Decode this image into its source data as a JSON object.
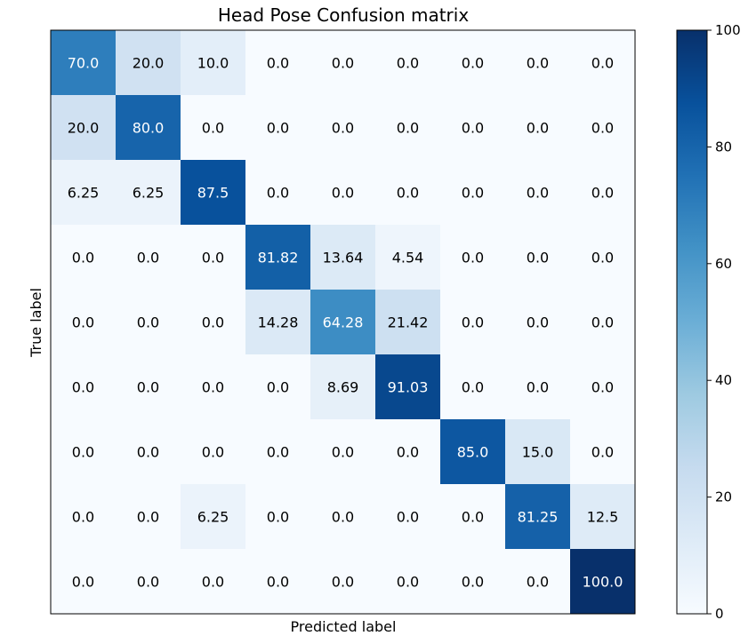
{
  "chart_data": {
    "type": "heatmap",
    "title": "Head Pose Confusion matrix",
    "xlabel": "Predicted label",
    "ylabel": "True label",
    "colormap": "Blues",
    "vmin": 0,
    "vmax": 100,
    "text_threshold": 50,
    "colorbar_ticks": [
      "0",
      "20",
      "40",
      "60",
      "80",
      "100"
    ],
    "matrix": [
      [
        "70.0",
        "20.0",
        "10.0",
        "0.0",
        "0.0",
        "0.0",
        "0.0",
        "0.0",
        "0.0"
      ],
      [
        "20.0",
        "80.0",
        "0.0",
        "0.0",
        "0.0",
        "0.0",
        "0.0",
        "0.0",
        "0.0"
      ],
      [
        "6.25",
        "6.25",
        "87.5",
        "0.0",
        "0.0",
        "0.0",
        "0.0",
        "0.0",
        "0.0"
      ],
      [
        "0.0",
        "0.0",
        "0.0",
        "81.82",
        "13.64",
        "4.54",
        "0.0",
        "0.0",
        "0.0"
      ],
      [
        "0.0",
        "0.0",
        "0.0",
        "14.28",
        "64.28",
        "21.42",
        "0.0",
        "0.0",
        "0.0"
      ],
      [
        "0.0",
        "0.0",
        "0.0",
        "0.0",
        "8.69",
        "91.03",
        "0.0",
        "0.0",
        "0.0"
      ],
      [
        "0.0",
        "0.0",
        "0.0",
        "0.0",
        "0.0",
        "0.0",
        "85.0",
        "15.0",
        "0.0"
      ],
      [
        "0.0",
        "0.0",
        "6.25",
        "0.0",
        "0.0",
        "0.0",
        "0.0",
        "81.25",
        "12.5"
      ],
      [
        "0.0",
        "0.0",
        "0.0",
        "0.0",
        "0.0",
        "0.0",
        "0.0",
        "0.0",
        "100.0"
      ]
    ]
  }
}
